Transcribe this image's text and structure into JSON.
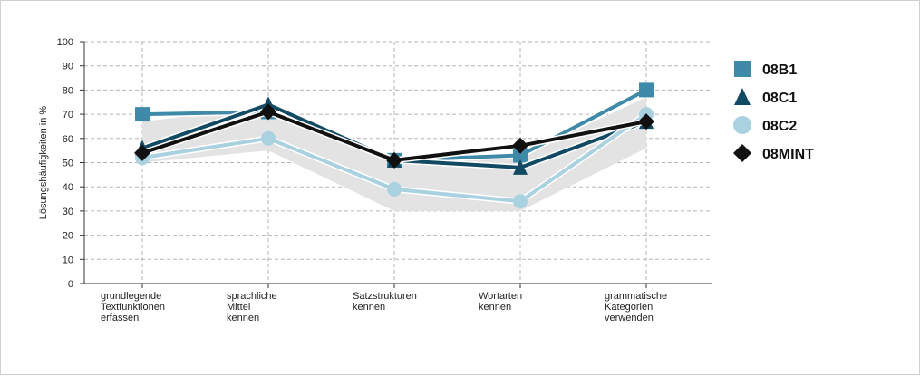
{
  "chart_data": {
    "type": "line",
    "ylabel": "Lösungshäufigkeiten in %",
    "ylim": [
      0,
      100
    ],
    "yticks": [
      0,
      10,
      20,
      30,
      40,
      50,
      60,
      70,
      80,
      90,
      100
    ],
    "grid": true,
    "legend_position": "right",
    "categories": [
      [
        "grundlegende",
        "Textfunktionen",
        "erfassen"
      ],
      [
        "sprachliche",
        "Mittel",
        "kennen"
      ],
      [
        "Satzstrukturen",
        "kennen"
      ],
      [
        "Wortarten",
        "kennen"
      ],
      [
        "grammatische",
        "Kategorien",
        "verwenden"
      ]
    ],
    "band": {
      "upper": [
        67,
        73,
        52,
        53,
        77
      ],
      "lower": [
        50,
        55,
        30,
        30,
        56
      ],
      "color": "#e3e3e3"
    },
    "series": [
      {
        "name": "08B1",
        "values": [
          70,
          71,
          51,
          53,
          80
        ],
        "color": "#3f8aa8",
        "marker": "square"
      },
      {
        "name": "08C1",
        "values": [
          56,
          74,
          51,
          48,
          67
        ],
        "color": "#124a63",
        "marker": "triangle"
      },
      {
        "name": "08C2",
        "values": [
          52,
          60,
          39,
          34,
          70
        ],
        "color": "#a9d1df",
        "marker": "circle"
      },
      {
        "name": "08MINT",
        "values": [
          54,
          71,
          51,
          57,
          67
        ],
        "color": "#111111",
        "marker": "diamond"
      }
    ]
  }
}
